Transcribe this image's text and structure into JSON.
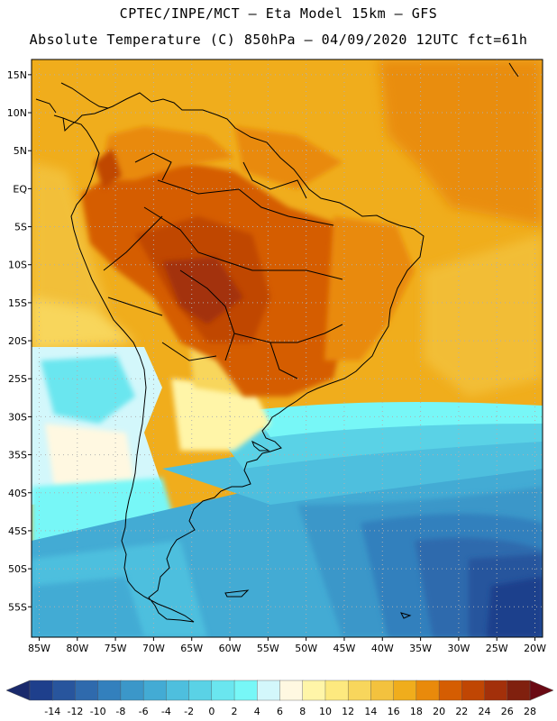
{
  "header": {
    "line1": "CPTEC/INPE/MCT –  Eta Model 15km – GFS",
    "line2": "Absolute Temperature (C) 850hPa – 04/09/2020 12UTC fct=61h"
  },
  "map": {
    "lon_range": [
      -86,
      -19
    ],
    "lat_range": [
      -59,
      17
    ],
    "lat_labels": [
      "15N",
      "10N",
      "5N",
      "EQ",
      "5S",
      "10S",
      "15S",
      "20S",
      "25S",
      "30S",
      "35S",
      "40S",
      "45S",
      "50S",
      "55S"
    ],
    "lat_values": [
      15,
      10,
      5,
      0,
      -5,
      -10,
      -15,
      -20,
      -25,
      -30,
      -35,
      -40,
      -45,
      -50,
      -55
    ],
    "lon_labels": [
      "85W",
      "80W",
      "75W",
      "70W",
      "65W",
      "60W",
      "55W",
      "50W",
      "45W",
      "40W",
      "35W",
      "30W",
      "25W",
      "20W"
    ],
    "lon_values": [
      -85,
      -80,
      -75,
      -70,
      -65,
      -60,
      -55,
      -50,
      -45,
      -40,
      -35,
      -30,
      -25,
      -20
    ]
  },
  "colorbar": {
    "labels": [
      "-14",
      "-12",
      "-10",
      "-8",
      "-6",
      "-4",
      "-2",
      "0",
      "2",
      "4",
      "6",
      "8",
      "10",
      "12",
      "14",
      "16",
      "18",
      "20",
      "22",
      "24",
      "26",
      "28"
    ],
    "colors": [
      "#1e3f8c",
      "#28559d",
      "#2f6aad",
      "#3380bd",
      "#3b97c9",
      "#43abd4",
      "#4ebfde",
      "#5ad2e6",
      "#6ae6ef",
      "#77f7f7",
      "#d3f7fb",
      "#fff8e1",
      "#fff5a8",
      "#fde97f",
      "#f8d65c",
      "#f3c23e",
      "#f0ad1c",
      "#e98a0b",
      "#d55d02",
      "#c04603",
      "#a3300a",
      "#80200e"
    ],
    "low_arrow_color": "#1a2a6c",
    "high_arrow_color": "#6a0a14"
  }
}
